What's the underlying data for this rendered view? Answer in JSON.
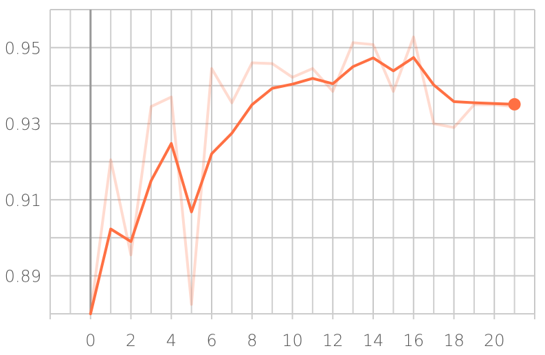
{
  "chart_data": {
    "type": "line",
    "title": "",
    "xlabel": "",
    "ylabel": "",
    "xlim": [
      -2,
      22
    ],
    "ylim": [
      0.88,
      0.96
    ],
    "x_ticks": [
      0,
      2,
      4,
      6,
      8,
      10,
      12,
      14,
      16,
      18,
      20
    ],
    "x_tick_labels": [
      "0",
      "2",
      "4",
      "6",
      "8",
      "10",
      "12",
      "14",
      "16",
      "18",
      "20"
    ],
    "y_ticks": [
      0.89,
      0.91,
      0.93,
      0.95
    ],
    "y_tick_labels": [
      "0.89",
      "0.91",
      "0.93",
      "0.95"
    ],
    "grid": true,
    "series": [
      {
        "role": "raw",
        "color": "#ff7043",
        "opacity": 0.25,
        "x": [
          0,
          1,
          2,
          3,
          4,
          5,
          6,
          7,
          8,
          9,
          10,
          11,
          12,
          13,
          14,
          15,
          16,
          17,
          18,
          19,
          20,
          21
        ],
        "values": [
          0.88,
          0.9205,
          0.8955,
          0.9345,
          0.937,
          0.8825,
          0.9445,
          0.9355,
          0.946,
          0.9458,
          0.9422,
          0.9445,
          0.9385,
          0.9513,
          0.9508,
          0.9385,
          0.9528,
          0.93,
          0.929,
          0.935,
          0.935,
          0.9345
        ]
      },
      {
        "role": "smoothed",
        "color": "#ff7043",
        "opacity": 1,
        "x": [
          0,
          1,
          2,
          3,
          4,
          5,
          6,
          7,
          8,
          9,
          10,
          11,
          12,
          13,
          14,
          15,
          16,
          17,
          18,
          19,
          20,
          21
        ],
        "values": [
          0.88,
          0.9023,
          0.899,
          0.915,
          0.9248,
          0.9068,
          0.9221,
          0.9275,
          0.935,
          0.9393,
          0.9404,
          0.9419,
          0.9405,
          0.945,
          0.9473,
          0.9439,
          0.9474,
          0.9402,
          0.9358,
          0.9355,
          0.9353,
          0.9351
        ]
      }
    ]
  }
}
